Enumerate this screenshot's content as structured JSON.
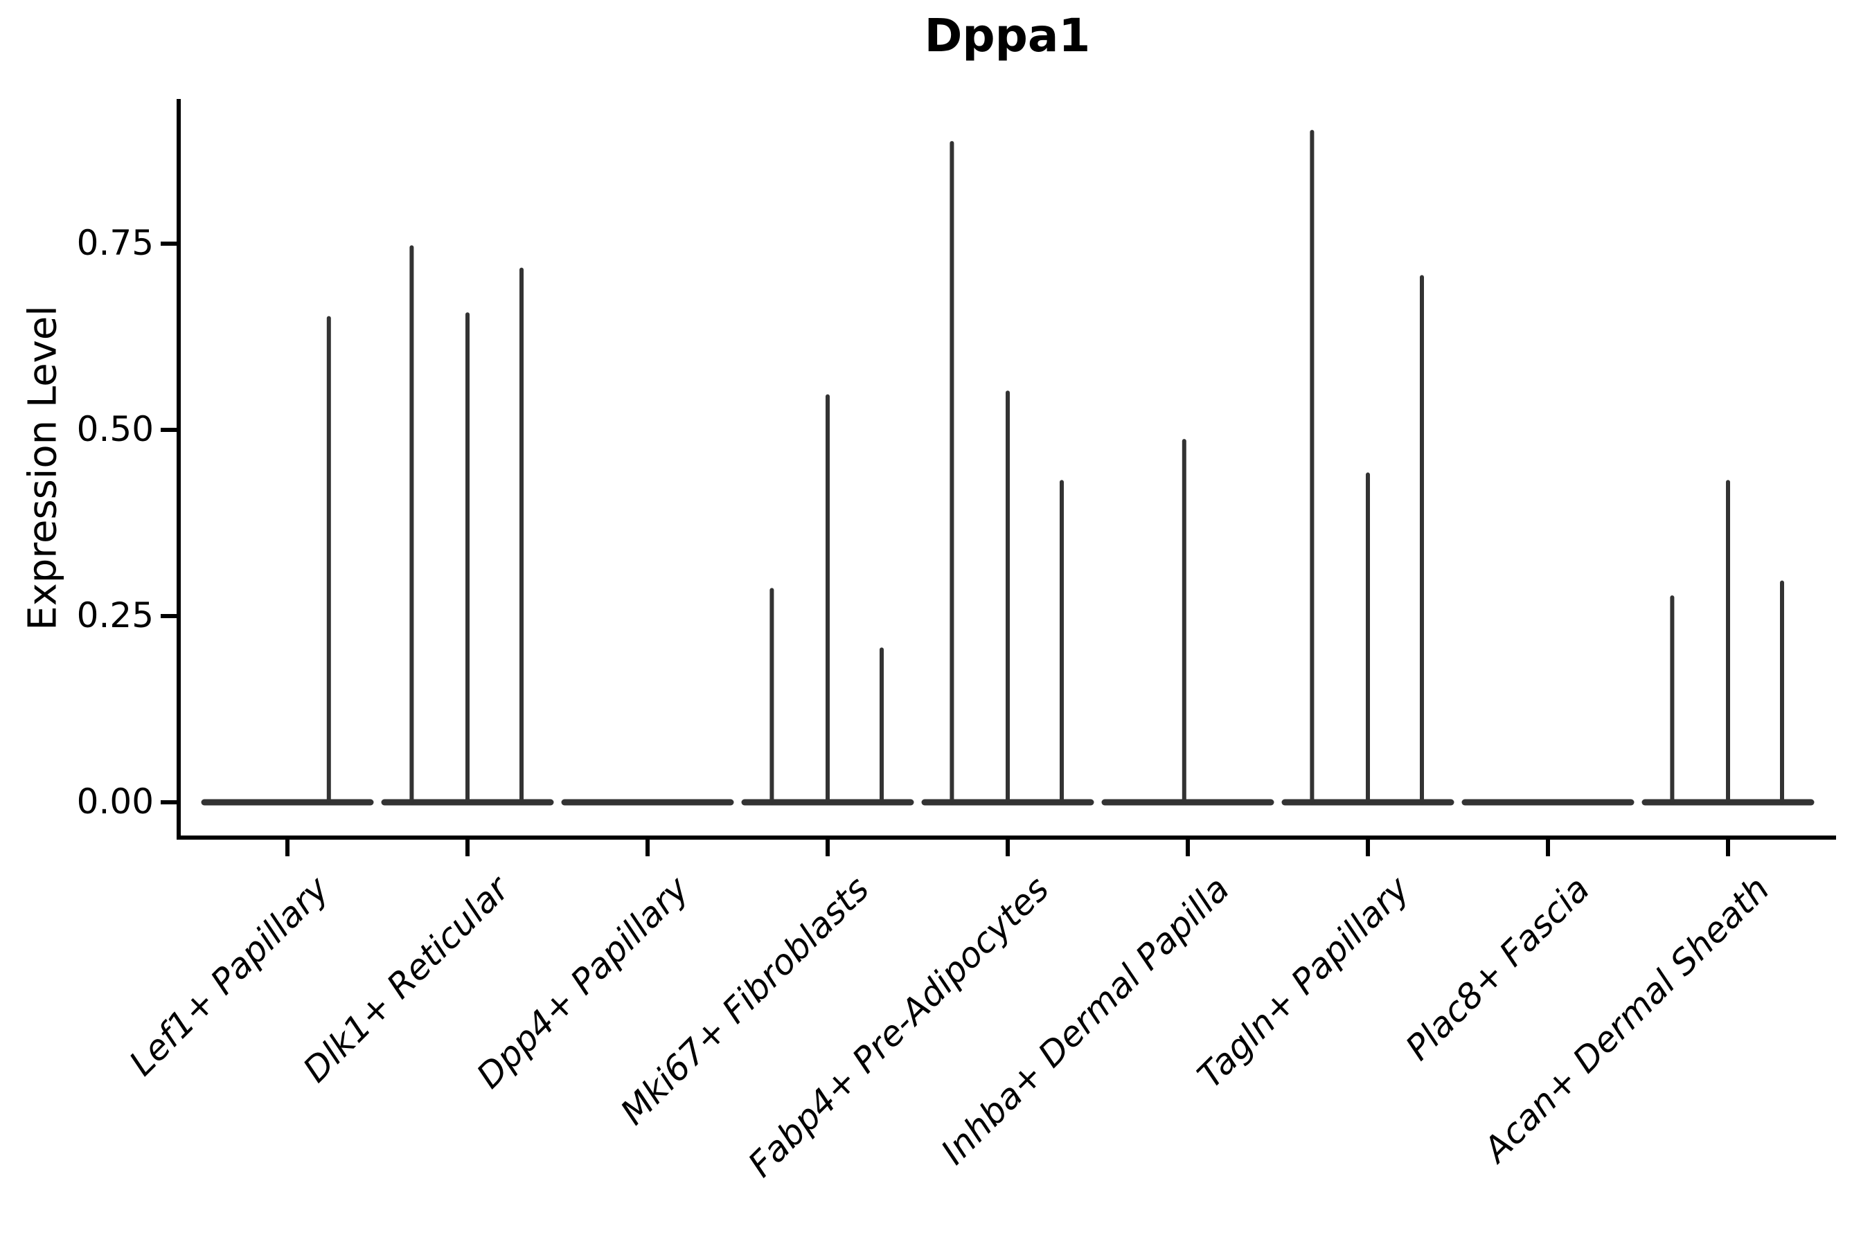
{
  "figure": {
    "title": "Dppa1",
    "ylabel": "Expression Level"
  },
  "chart_data": {
    "type": "violin",
    "title": "Dppa1",
    "xlabel": "",
    "ylabel": "Expression Level",
    "ylim": [
      -0.047,
      0.944
    ],
    "yticks": [
      0,
      0.25,
      0.5,
      0.75
    ],
    "ytick_labels": [
      "0.00",
      "0.25",
      "0.50",
      "0.75"
    ],
    "grid": false,
    "legend": "none",
    "x_tick_rotation": 45,
    "categories": [
      "Lef1+ Papillary",
      "Dlk1+ Reticular",
      "Dpp4+ Papillary",
      "Mki67+ Fibroblasts",
      "Fabp4+ Pre-Adipocytes",
      "Inhba+ Dermal Papilla",
      "Tagln+ Papillary",
      "Plac8+ Fascia",
      "Acan+ Dermal Sheath"
    ],
    "series": [
      {
        "category": "Lef1+ Papillary",
        "baseline_value": 0,
        "spikes": [
          {
            "offset": 0.23,
            "value": 0.65
          }
        ]
      },
      {
        "category": "Dlk1+ Reticular",
        "baseline_value": 0,
        "spikes": [
          {
            "offset": -0.31,
            "value": 0.745
          },
          {
            "offset": 0.0,
            "value": 0.655
          },
          {
            "offset": 0.3,
            "value": 0.715
          }
        ]
      },
      {
        "category": "Dpp4+ Papillary",
        "baseline_value": 0,
        "spikes": []
      },
      {
        "category": "Mki67+ Fibroblasts",
        "baseline_value": 0,
        "spikes": [
          {
            "offset": -0.31,
            "value": 0.285
          },
          {
            "offset": 0.0,
            "value": 0.545
          },
          {
            "offset": 0.3,
            "value": 0.205
          }
        ]
      },
      {
        "category": "Fabp4+ Pre-Adipocytes",
        "baseline_value": 0,
        "spikes": [
          {
            "offset": -0.31,
            "value": 0.885
          },
          {
            "offset": 0.0,
            "value": 0.55
          },
          {
            "offset": 0.3,
            "value": 0.43
          }
        ]
      },
      {
        "category": "Inhba+ Dermal Papilla",
        "baseline_value": 0,
        "spikes": [
          {
            "offset": -0.02,
            "value": 0.485
          }
        ]
      },
      {
        "category": "Tagln+ Papillary",
        "baseline_value": 0,
        "spikes": [
          {
            "offset": -0.31,
            "value": 0.9
          },
          {
            "offset": 0.0,
            "value": 0.44
          },
          {
            "offset": 0.3,
            "value": 0.705
          }
        ]
      },
      {
        "category": "Plac8+ Fascia",
        "baseline_value": 0,
        "spikes": []
      },
      {
        "category": "Acan+ Dermal Sheath",
        "baseline_value": 0,
        "spikes": [
          {
            "offset": -0.31,
            "value": 0.275
          },
          {
            "offset": 0.0,
            "value": 0.43
          },
          {
            "offset": 0.3,
            "value": 0.295
          }
        ]
      }
    ],
    "colors": {
      "violin": "#333333",
      "axis": "#000000",
      "text": "#000000",
      "background": "#ffffff"
    }
  }
}
